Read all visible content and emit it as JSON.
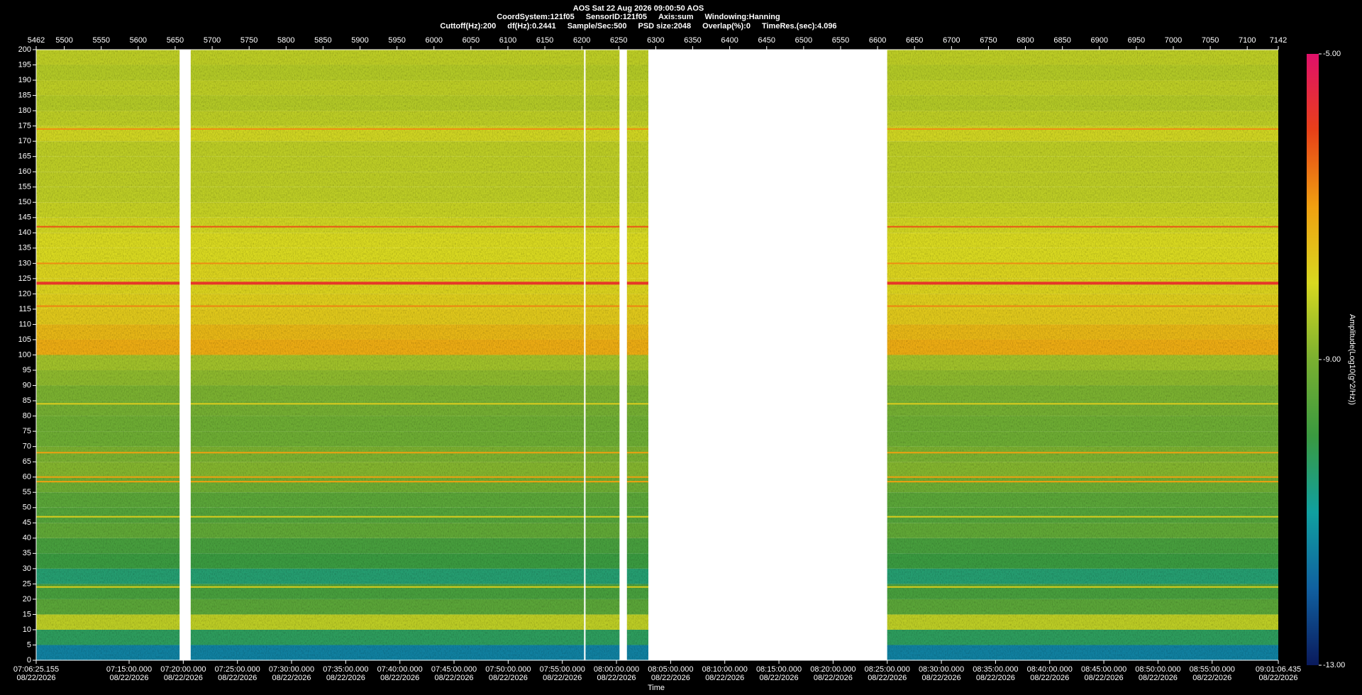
{
  "header": {
    "title": "AOS  Sat 22 Aug 2026 09:00:50  AOS",
    "line2": [
      "CoordSystem:121f05",
      "SensorID:121f05",
      "Axis:sum",
      "Windowing:Hanning"
    ],
    "line3": [
      "Cuttoff(Hz):200",
      "df(Hz):0.2441",
      "Sample/Sec:500",
      "PSD size:2048",
      "Overlap(%):0",
      "TimeRes.(sec):4.096"
    ]
  },
  "chart_data": {
    "type": "spectrogram",
    "xlabel": "Time",
    "colorbar_label": "Amplitude(Log10(g^2/Hz))",
    "xlim": [
      5462,
      7142
    ],
    "xticks_top": [
      5462,
      5500,
      5550,
      5600,
      5650,
      5700,
      5750,
      5800,
      5850,
      5900,
      5950,
      6000,
      6050,
      6100,
      6150,
      6200,
      6250,
      6300,
      6350,
      6400,
      6450,
      6500,
      6550,
      6600,
      6650,
      6700,
      6750,
      6800,
      6850,
      6900,
      6950,
      7000,
      7050,
      7100,
      7142
    ],
    "xticks": [
      {
        "time": "07:06:25.155",
        "date": "08/22/2026"
      },
      {
        "time": "07:15:00.000",
        "date": "08/22/2026"
      },
      {
        "time": "07:20:00.000",
        "date": "08/22/2026"
      },
      {
        "time": "07:25:00.000",
        "date": "08/22/2026"
      },
      {
        "time": "07:30:00.000",
        "date": "08/22/2026"
      },
      {
        "time": "07:35:00.000",
        "date": "08/22/2026"
      },
      {
        "time": "07:40:00.000",
        "date": "08/22/2026"
      },
      {
        "time": "07:45:00.000",
        "date": "08/22/2026"
      },
      {
        "time": "07:50:00.000",
        "date": "08/22/2026"
      },
      {
        "time": "07:55:00.000",
        "date": "08/22/2026"
      },
      {
        "time": "08:00:00.000",
        "date": "08/22/2026"
      },
      {
        "time": "08:05:00.000",
        "date": "08/22/2026"
      },
      {
        "time": "08:10:00.000",
        "date": "08/22/2026"
      },
      {
        "time": "08:15:00.000",
        "date": "08/22/2026"
      },
      {
        "time": "08:20:00.000",
        "date": "08/22/2026"
      },
      {
        "time": "08:25:00.000",
        "date": "08/22/2026"
      },
      {
        "time": "08:30:00.000",
        "date": "08/22/2026"
      },
      {
        "time": "08:35:00.000",
        "date": "08/22/2026"
      },
      {
        "time": "08:40:00.000",
        "date": "08/22/2026"
      },
      {
        "time": "08:45:00.000",
        "date": "08/22/2026"
      },
      {
        "time": "08:50:00.000",
        "date": "08/22/2026"
      },
      {
        "time": "08:55:00.000",
        "date": "08/22/2026"
      },
      {
        "time": "09:01:06.435",
        "date": "08/22/2026"
      }
    ],
    "ylim": [
      0,
      200
    ],
    "yticks": [
      0,
      5,
      10,
      15,
      20,
      25,
      30,
      35,
      40,
      45,
      50,
      55,
      60,
      65,
      70,
      75,
      80,
      85,
      90,
      95,
      100,
      105,
      110,
      115,
      120,
      125,
      130,
      135,
      140,
      145,
      150,
      155,
      160,
      165,
      170,
      175,
      180,
      185,
      190,
      195,
      200
    ],
    "bins": [
      0,
      5,
      10,
      15,
      20,
      25,
      30,
      35,
      40,
      45,
      50,
      55,
      60,
      65,
      70,
      75,
      80,
      85,
      90,
      95,
      100,
      105,
      110,
      115,
      120,
      125,
      130,
      135,
      140,
      145,
      150,
      155,
      160,
      165,
      170,
      175,
      180,
      185,
      190,
      195,
      200
    ],
    "amplitudes": [
      -11.5,
      -10.3,
      -8.3,
      -9.5,
      -9.8,
      -10.5,
      -10.0,
      -9.8,
      -9.4,
      -9.6,
      -9.5,
      -9.2,
      -8.9,
      -9.0,
      -9.2,
      -9.2,
      -9.1,
      -9.0,
      -8.8,
      -8.6,
      -7.2,
      -7.4,
      -7.7,
      -7.8,
      -7.9,
      -7.9,
      -8.0,
      -8.0,
      -8.1,
      -8.2,
      -8.3,
      -8.3,
      -8.3,
      -8.3,
      -8.1,
      -8.3,
      -8.4,
      -8.3,
      -8.4,
      -8.3
    ],
    "lines": [
      {
        "freq": 174,
        "amplitude": -6.8
      },
      {
        "freq": 142,
        "amplitude": -6.2
      },
      {
        "freq": 130,
        "amplitude": -6.8
      },
      {
        "freq": 123.5,
        "amplitude": -5.8
      },
      {
        "freq": 116,
        "amplitude": -6.7
      },
      {
        "freq": 84,
        "amplitude": -7.8
      },
      {
        "freq": 68,
        "amplitude": -7.0
      },
      {
        "freq": 60,
        "amplitude": -7.0
      },
      {
        "freq": 58.5,
        "amplitude": -7.0
      },
      {
        "freq": 47,
        "amplitude": -7.8
      },
      {
        "freq": 24,
        "amplitude": -7.8
      }
    ],
    "gaps": [
      [
        5656,
        5671
      ],
      [
        6203,
        6205
      ],
      [
        6251,
        6261
      ],
      [
        6290,
        6613
      ]
    ],
    "clim": [
      -13,
      -5
    ],
    "colorbar_ticks": [
      {
        "value": -5,
        "label": "-5.00"
      },
      {
        "value": -9,
        "label": "-9.00"
      },
      {
        "value": -13,
        "label": "-13.00"
      }
    ],
    "colormap": [
      "#0a1a5c",
      "#1060a0",
      "#10a0a0",
      "#3a9a40",
      "#7ab030",
      "#d8d820",
      "#f0a010",
      "#e84018",
      "#e0106a"
    ]
  }
}
